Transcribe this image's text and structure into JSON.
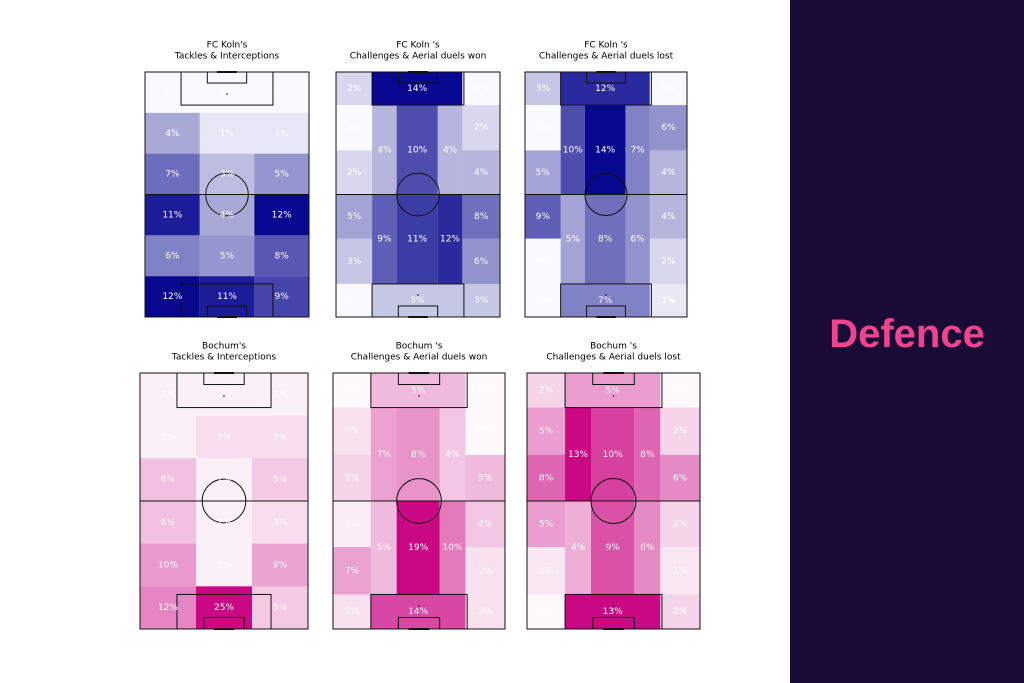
{
  "chart_data": [
    {
      "type": "heatmap",
      "layout": "thirds",
      "color": "#00008b",
      "title": [
        "FC Koln's",
        "Tackles & Interceptions"
      ],
      "values": [
        0,
        0,
        0,
        4,
        1,
        1,
        7,
        3,
        5,
        11,
        4,
        12,
        6,
        5,
        8,
        12,
        11,
        9
      ],
      "value_labels": [
        "0%",
        "0%",
        "0%",
        "4%",
        "1%",
        "1%",
        "7%",
        "3%",
        "5%",
        "11%",
        "4%",
        "12%",
        "6%",
        "5%",
        "8%",
        "12%",
        "11%",
        "9%"
      ]
    },
    {
      "type": "heatmap",
      "layout": "zones",
      "color": "#00008b",
      "title": [
        "FC Koln 's",
        "Challenges & Aerial duels won"
      ],
      "values": [
        2,
        14,
        0,
        0,
        2,
        2,
        4,
        4,
        10,
        4,
        5,
        8,
        3,
        6,
        9,
        11,
        12,
        0,
        3,
        3
      ],
      "value_labels": [
        "2%",
        "14%",
        "0%",
        "0%",
        "2%",
        "2%",
        "4%",
        "4%",
        "10%",
        "4%",
        "5%",
        "8%",
        "3%",
        "6%",
        "9%",
        "11%",
        "12%",
        "0%",
        "3%",
        "3%"
      ]
    },
    {
      "type": "heatmap",
      "layout": "zones",
      "color": "#00008b",
      "title": [
        "FC Koln 's",
        "Challenges & Aerial duels lost"
      ],
      "values": [
        3,
        12,
        0,
        0,
        6,
        5,
        4,
        10,
        14,
        7,
        9,
        4,
        0,
        2,
        5,
        8,
        6,
        0,
        7,
        1
      ],
      "value_labels": [
        "3%",
        "12%",
        "0%",
        "0%",
        "6%",
        "5%",
        "4%",
        "10%",
        "14%",
        "7%",
        "9%",
        "4%",
        "0%",
        "2%",
        "5%",
        "8%",
        "6%",
        "0%",
        "7%",
        "1%"
      ]
    },
    {
      "type": "heatmap",
      "layout": "thirds",
      "color": "#c8007f",
      "title": [
        "Bochum's",
        "Tackles & Interceptions"
      ],
      "values": [
        1,
        1,
        1,
        1,
        3,
        3,
        6,
        1,
        5,
        6,
        1,
        3,
        10,
        1,
        9,
        12,
        25,
        5
      ],
      "value_labels": [
        "1%",
        "1%",
        "1%",
        "1%",
        "3%",
        "3%",
        "6%",
        "1%",
        "5%",
        "6%",
        "1%",
        "3%",
        "10%",
        "1%",
        "9%",
        "12%",
        "25%",
        "5%"
      ]
    },
    {
      "type": "heatmap",
      "layout": "zones",
      "color": "#c8007f",
      "title": [
        "Bochum 's",
        "Challenges & Aerial duels won"
      ],
      "values": [
        0,
        5,
        0,
        2,
        0,
        3,
        5,
        7,
        8,
        4,
        1,
        4,
        7,
        2,
        5,
        19,
        10,
        2,
        14,
        2
      ],
      "value_labels": [
        "0%",
        "5%",
        "0%",
        "2%",
        "0%",
        "3%",
        "5%",
        "7%",
        "8%",
        "4%",
        "1%",
        "4%",
        "7%",
        "2%",
        "5%",
        "19%",
        "10%",
        "2%",
        "14%",
        "2%"
      ]
    },
    {
      "type": "heatmap",
      "layout": "zones",
      "color": "#c8007f",
      "title": [
        "Bochum 's",
        "Challenges & Aerial duels lost"
      ],
      "values": [
        2,
        5,
        0,
        5,
        2,
        8,
        6,
        13,
        10,
        8,
        5,
        2,
        1,
        1,
        4,
        9,
        6,
        0,
        13,
        2
      ],
      "value_labels": [
        "2%",
        "5%",
        "0%",
        "5%",
        "2%",
        "8%",
        "6%",
        "13%",
        "10%",
        "8%",
        "5%",
        "2%",
        "1%",
        "1%",
        "4%",
        "9%",
        "6%",
        "0%",
        "13%",
        "2%"
      ]
    }
  ],
  "sidebar": {
    "title": "Defence"
  }
}
